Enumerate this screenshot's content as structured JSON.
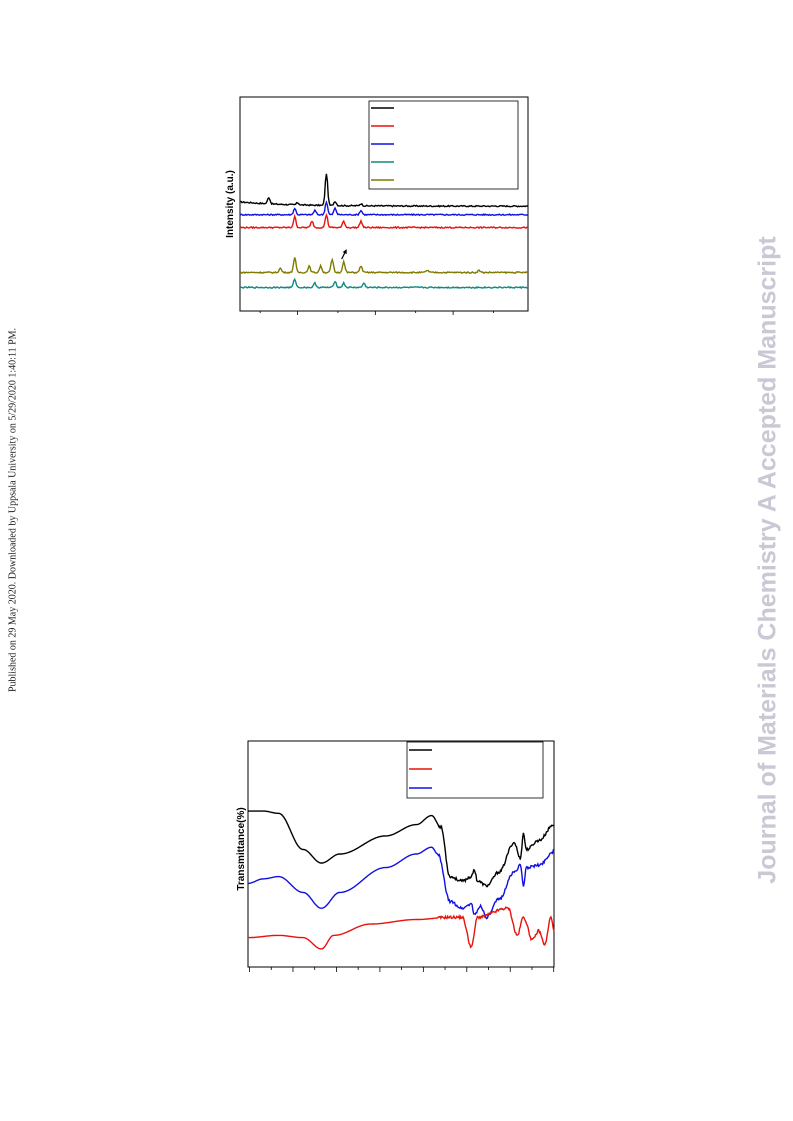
{
  "side_note": "Published on 29 May 2020. Downloaded by Uppsala University on 5/29/2020 1:40:11 PM.",
  "watermark": "Journal of Materials Chemistry A Accepted Manuscript",
  "colors": {
    "black": "#000000",
    "red": "#e8120c",
    "blue": "#1010e0",
    "teal": "#0f8a80",
    "olive": "#7f7a00",
    "watermark": "#c9c9d6"
  },
  "chart_data": [
    {
      "type": "line",
      "title": "",
      "xlabel": "",
      "ylabel": "Intensity (a.u.)",
      "grid": false,
      "legend_placement": "top-right",
      "legend_entries": [
        {
          "color": "#000000",
          "label": ""
        },
        {
          "color": "#e8120c",
          "label": ""
        },
        {
          "color": "#1010e0",
          "label": ""
        },
        {
          "color": "#0f8a80",
          "label": ""
        },
        {
          "color": "#7f7a00",
          "label": ""
        }
      ],
      "x_range": [
        0,
        1
      ],
      "series": [
        {
          "color": "#000000",
          "baseline": 0.49,
          "peaks": [
            [
              0.1,
              0.03
            ],
            [
              0.2,
              0.01
            ],
            [
              0.3,
              0.15
            ],
            [
              0.33,
              0.02
            ],
            [
              0.42,
              0.01
            ]
          ]
        },
        {
          "color": "#1010e0",
          "baseline": 0.45,
          "peaks": [
            [
              0.19,
              0.03
            ],
            [
              0.26,
              0.02
            ],
            [
              0.3,
              0.06
            ],
            [
              0.33,
              0.03
            ],
            [
              0.42,
              0.02
            ]
          ]
        },
        {
          "color": "#e8120c",
          "baseline": 0.39,
          "peaks": [
            [
              0.19,
              0.05
            ],
            [
              0.25,
              0.03
            ],
            [
              0.3,
              0.06
            ],
            [
              0.36,
              0.03
            ],
            [
              0.42,
              0.03
            ]
          ]
        },
        {
          "color": "#7f7a00",
          "baseline": 0.18,
          "peaks": [
            [
              0.14,
              0.02
            ],
            [
              0.19,
              0.07
            ],
            [
              0.24,
              0.03
            ],
            [
              0.28,
              0.03
            ],
            [
              0.32,
              0.06
            ],
            [
              0.36,
              0.05
            ],
            [
              0.42,
              0.03
            ],
            [
              0.65,
              0.01
            ],
            [
              0.83,
              0.01
            ]
          ]
        },
        {
          "color": "#0f8a80",
          "baseline": 0.11,
          "peaks": [
            [
              0.19,
              0.04
            ],
            [
              0.26,
              0.02
            ],
            [
              0.33,
              0.03
            ],
            [
              0.36,
              0.02
            ],
            [
              0.43,
              0.02
            ]
          ]
        }
      ],
      "annotations": [
        {
          "type": "arrow",
          "x": 0.36,
          "y": 0.28
        }
      ]
    },
    {
      "type": "line",
      "title": "",
      "xlabel": "",
      "ylabel": "Transmittance(%)",
      "grid": false,
      "legend_placement": "top-right",
      "legend_entries": [
        {
          "color": "#000000",
          "label": ""
        },
        {
          "color": "#e8120c",
          "label": ""
        },
        {
          "color": "#1010e0",
          "label": ""
        }
      ],
      "x_range": [
        0,
        1
      ],
      "series": [
        {
          "color": "#000000",
          "points": [
            [
              0.0,
              0.69
            ],
            [
              0.05,
              0.69
            ],
            [
              0.1,
              0.68
            ],
            [
              0.18,
              0.52
            ],
            [
              0.24,
              0.46
            ],
            [
              0.3,
              0.5
            ],
            [
              0.45,
              0.58
            ],
            [
              0.55,
              0.63
            ],
            [
              0.6,
              0.67
            ],
            [
              0.63,
              0.62
            ],
            [
              0.66,
              0.4
            ],
            [
              0.7,
              0.38
            ],
            [
              0.73,
              0.4
            ],
            [
              0.74,
              0.43
            ],
            [
              0.75,
              0.38
            ],
            [
              0.78,
              0.36
            ],
            [
              0.82,
              0.42
            ],
            [
              0.87,
              0.55
            ],
            [
              0.89,
              0.48
            ],
            [
              0.9,
              0.59
            ],
            [
              0.91,
              0.52
            ],
            [
              0.95,
              0.56
            ],
            [
              1.0,
              0.63
            ]
          ]
        },
        {
          "color": "#1010e0",
          "points": [
            [
              0.0,
              0.37
            ],
            [
              0.05,
              0.39
            ],
            [
              0.1,
              0.4
            ],
            [
              0.18,
              0.33
            ],
            [
              0.24,
              0.26
            ],
            [
              0.3,
              0.33
            ],
            [
              0.45,
              0.44
            ],
            [
              0.55,
              0.5
            ],
            [
              0.6,
              0.53
            ],
            [
              0.62,
              0.5
            ],
            [
              0.66,
              0.29
            ],
            [
              0.7,
              0.26
            ],
            [
              0.73,
              0.28
            ],
            [
              0.74,
              0.23
            ],
            [
              0.76,
              0.27
            ],
            [
              0.78,
              0.22
            ],
            [
              0.82,
              0.3
            ],
            [
              0.87,
              0.42
            ],
            [
              0.89,
              0.45
            ],
            [
              0.9,
              0.36
            ],
            [
              0.91,
              0.44
            ],
            [
              0.95,
              0.45
            ],
            [
              1.0,
              0.51
            ]
          ]
        },
        {
          "color": "#e8120c",
          "points": [
            [
              0.0,
              0.13
            ],
            [
              0.1,
              0.14
            ],
            [
              0.18,
              0.13
            ],
            [
              0.24,
              0.08
            ],
            [
              0.28,
              0.14
            ],
            [
              0.4,
              0.19
            ],
            [
              0.55,
              0.21
            ],
            [
              0.66,
              0.22
            ],
            [
              0.7,
              0.22
            ],
            [
              0.73,
              0.09
            ],
            [
              0.75,
              0.22
            ],
            [
              0.85,
              0.26
            ],
            [
              0.88,
              0.14
            ],
            [
              0.9,
              0.22
            ],
            [
              0.93,
              0.12
            ],
            [
              0.95,
              0.16
            ],
            [
              0.97,
              0.1
            ],
            [
              0.99,
              0.22
            ],
            [
              1.0,
              0.16
            ]
          ]
        }
      ]
    }
  ]
}
